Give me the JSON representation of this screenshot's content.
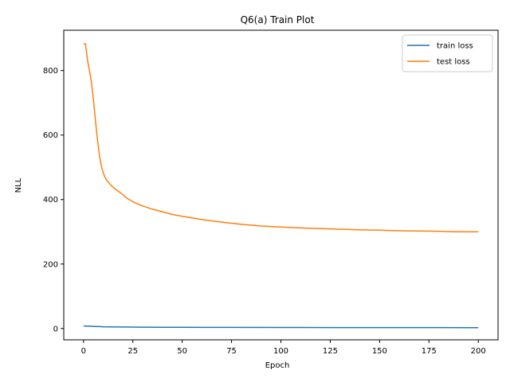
{
  "chart_data": {
    "type": "line",
    "title": "Q6(a) Train Plot",
    "xlabel": "Epoch",
    "ylabel": "NLL",
    "xlim": [
      -10,
      210
    ],
    "ylim": [
      -35,
      925
    ],
    "xticks": [
      0,
      25,
      50,
      75,
      100,
      125,
      150,
      175,
      200
    ],
    "yticks": [
      0,
      200,
      400,
      600,
      800
    ],
    "legend": {
      "placement": "top-right"
    },
    "series": [
      {
        "name": "train loss",
        "color": "#1f77b4",
        "x": [
          0,
          2,
          4,
          6,
          8,
          10,
          15,
          20,
          30,
          40,
          50,
          75,
          100,
          125,
          150,
          175,
          200
        ],
        "y": [
          8,
          7.5,
          7,
          6.5,
          6,
          5.5,
          5,
          4.7,
          4.3,
          4,
          3.8,
          3.5,
          3.3,
          3.1,
          3,
          2.9,
          2.8
        ]
      },
      {
        "name": "test loss",
        "color": "#ff7f0e",
        "x": [
          0,
          1,
          2,
          4,
          5,
          6,
          7,
          8,
          9,
          10,
          11,
          12,
          14,
          16,
          18,
          20,
          22,
          24,
          26,
          30,
          35,
          40,
          45,
          50,
          60,
          70,
          80,
          90,
          100,
          110,
          125,
          140,
          150,
          160,
          175,
          190,
          200
        ],
        "y": [
          883,
          883,
          835,
          765,
          710,
          650,
          590,
          540,
          505,
          483,
          468,
          458,
          444,
          433,
          424,
          415,
          404,
          397,
          390,
          380,
          370,
          362,
          354,
          348,
          338,
          330,
          323,
          318,
          315,
          312,
          309,
          306,
          305,
          303,
          302,
          300,
          300
        ]
      }
    ]
  }
}
